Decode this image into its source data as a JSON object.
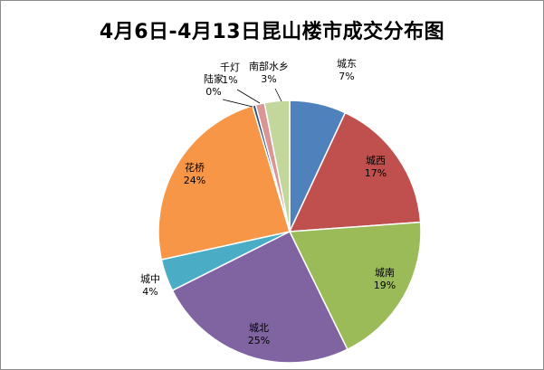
{
  "chart_data": {
    "type": "pie",
    "title": "4月6日-4月13日昆山楼市成交分布图",
    "slices": [
      {
        "name": "城东",
        "percent_label": "7%",
        "value": 7,
        "color": "#4f81bd"
      },
      {
        "name": "城西",
        "percent_label": "17%",
        "value": 17,
        "color": "#c0504d"
      },
      {
        "name": "城南",
        "percent_label": "19%",
        "value": 19,
        "color": "#9bbb59"
      },
      {
        "name": "城北",
        "percent_label": "25%",
        "value": 25,
        "color": "#8064a2"
      },
      {
        "name": "城中",
        "percent_label": "4%",
        "value": 4,
        "color": "#4bacc6"
      },
      {
        "name": "花桥",
        "percent_label": "24%",
        "value": 24,
        "color": "#f79646"
      },
      {
        "name": "陆家",
        "percent_label": "0%",
        "value": 0.4,
        "color": "#2c4d75"
      },
      {
        "name": "千灯",
        "percent_label": "1%",
        "value": 1.1,
        "color": "#d99694"
      },
      {
        "name": "南部水乡",
        "percent_label": "3%",
        "value": 3.1,
        "color": "#c3d69b"
      }
    ]
  }
}
